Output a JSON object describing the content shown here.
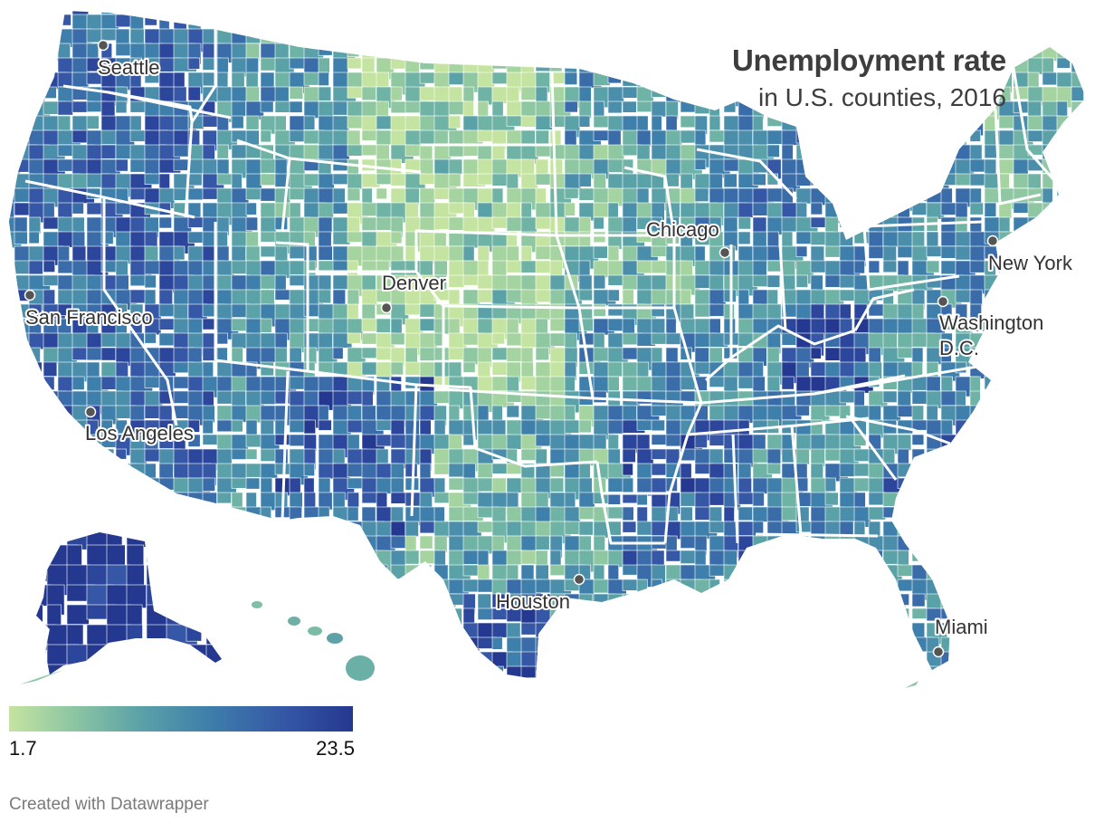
{
  "title": "Unemployment rate",
  "subtitle": "in U.S. counties, 2016",
  "legend": {
    "min": "1.7",
    "max": "23.5"
  },
  "credit": "Created with Datawrapper",
  "colors": {
    "low": "#c5e3a1",
    "mid": "#4f93aa",
    "high": "#24388f",
    "state_border": "#ffffff",
    "city_dot": "#555555"
  },
  "cities": [
    {
      "name": "Seattle"
    },
    {
      "name": "San Francisco"
    },
    {
      "name": "Los Angeles"
    },
    {
      "name": "Denver"
    },
    {
      "name": "Chicago"
    },
    {
      "name": "New York"
    },
    {
      "name": "Washington D.C."
    },
    {
      "name": "Houston"
    },
    {
      "name": "Miami"
    }
  ]
}
